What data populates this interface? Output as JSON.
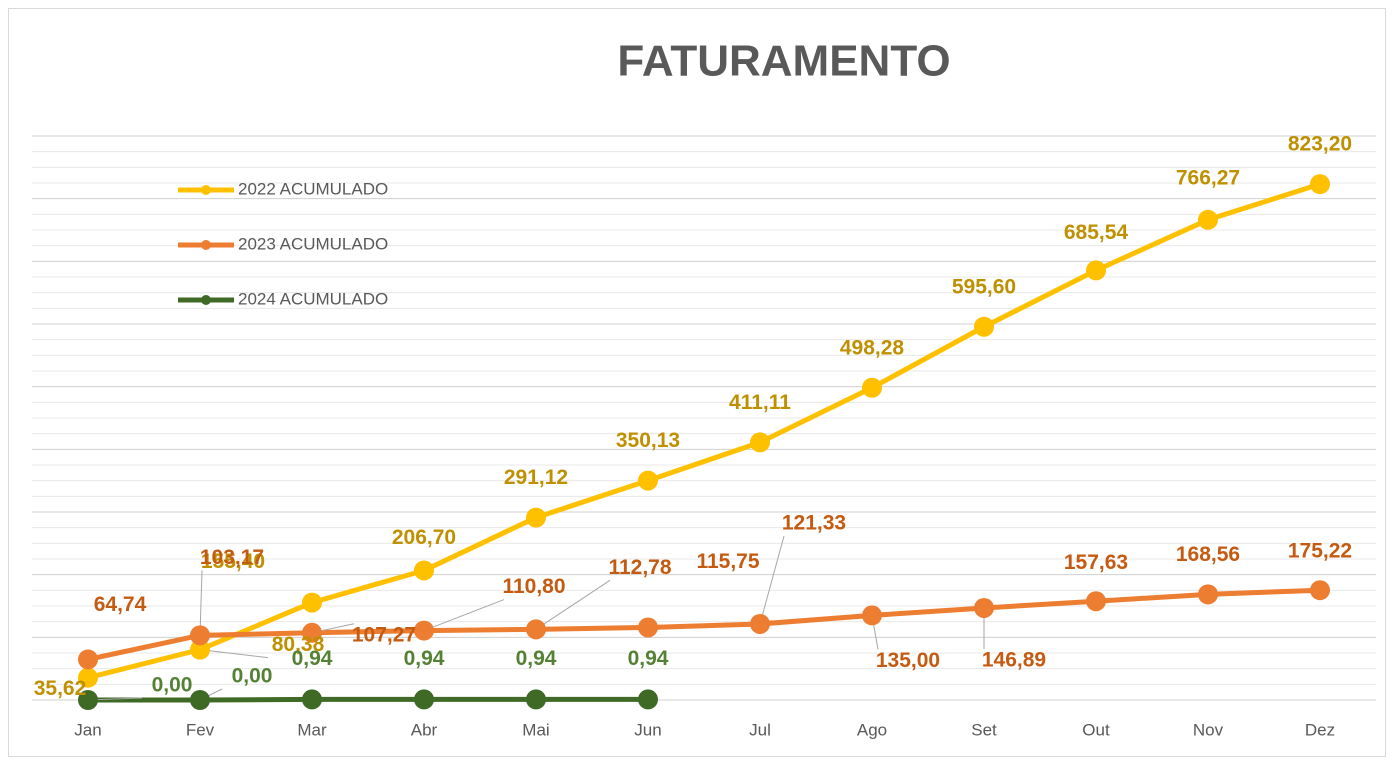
{
  "chart_data": {
    "type": "line",
    "title": "FATURAMENTO",
    "categories": [
      "Jan",
      "Fev",
      "Mar",
      "Abr",
      "Mai",
      "Jun",
      "Jul",
      "Ago",
      "Set",
      "Out",
      "Nov",
      "Dez"
    ],
    "series": [
      {
        "name": "2022 ACUMULADO",
        "color": "#ffc000",
        "label_color": "#bf9000",
        "values": [
          35.62,
          80.38,
          155.4,
          206.7,
          291.12,
          350.13,
          411.11,
          498.28,
          595.6,
          685.54,
          766.27,
          823.2
        ],
        "value_labels": [
          "35,62",
          "80,38",
          "155,40",
          "206,70",
          "291,12",
          "350,13",
          "411,11",
          "498,28",
          "595,60",
          "685,54",
          "766,27",
          "823,20"
        ]
      },
      {
        "name": "2023 ACUMULADO",
        "color": "#ed7d31",
        "label_color": "#c55a11",
        "values": [
          64.74,
          103.17,
          107.27,
          110.8,
          112.78,
          115.75,
          121.33,
          135.0,
          146.89,
          157.63,
          168.56,
          175.22
        ],
        "value_labels": [
          "64,74",
          "103,17",
          "107,27",
          "110,80",
          "112,78",
          "115,75",
          "121,33",
          "135,00",
          "146,89",
          "157,63",
          "168,56",
          "175,22"
        ]
      },
      {
        "name": "2024 ACUMULADO",
        "color": "#3e6a26",
        "label_color": "#548235",
        "values": [
          0.0,
          0.0,
          0.94,
          0.94,
          0.94,
          0.94,
          null,
          null,
          null,
          null,
          null,
          null
        ],
        "value_labels": [
          "0,00",
          "0,00",
          "0,94",
          "0,94",
          "0,94",
          "0,94",
          null,
          null,
          null,
          null,
          null,
          null
        ]
      }
    ],
    "ylim": [
      0,
      900
    ],
    "yticks": [
      0,
      25,
      50,
      75,
      100,
      125,
      150,
      175,
      200,
      225,
      250,
      275,
      300,
      325,
      350,
      375,
      400,
      425,
      450,
      475,
      500,
      525,
      550,
      575,
      600,
      625,
      650,
      675,
      700,
      725,
      750,
      775,
      800,
      825,
      850,
      875,
      900
    ],
    "grid": true,
    "legend": "upper left"
  }
}
